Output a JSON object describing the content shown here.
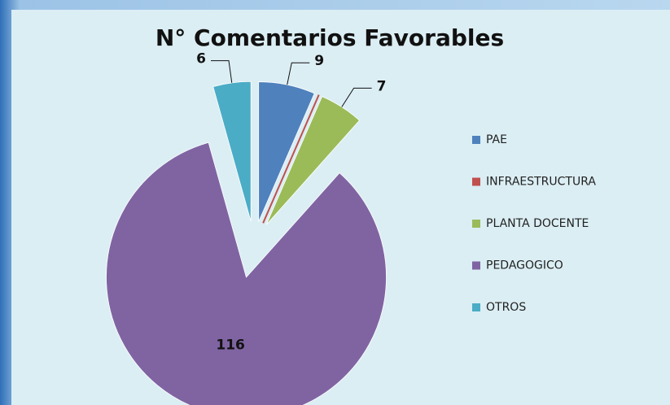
{
  "chart_data": {
    "type": "pie",
    "title": "N° Comentarios Favorables",
    "categories": [
      "PAE",
      "INFRAESTRUCTURA",
      "PLANTA DOCENTE",
      "PEDAGOGICO",
      "OTROS"
    ],
    "values": [
      9,
      0,
      7,
      116,
      6
    ],
    "colors": [
      "#4f81bd",
      "#c0504d",
      "#9bbb59",
      "#8064a2",
      "#4bacc6"
    ],
    "labeled": [
      true,
      false,
      true,
      true,
      true
    ],
    "legend": "right"
  }
}
